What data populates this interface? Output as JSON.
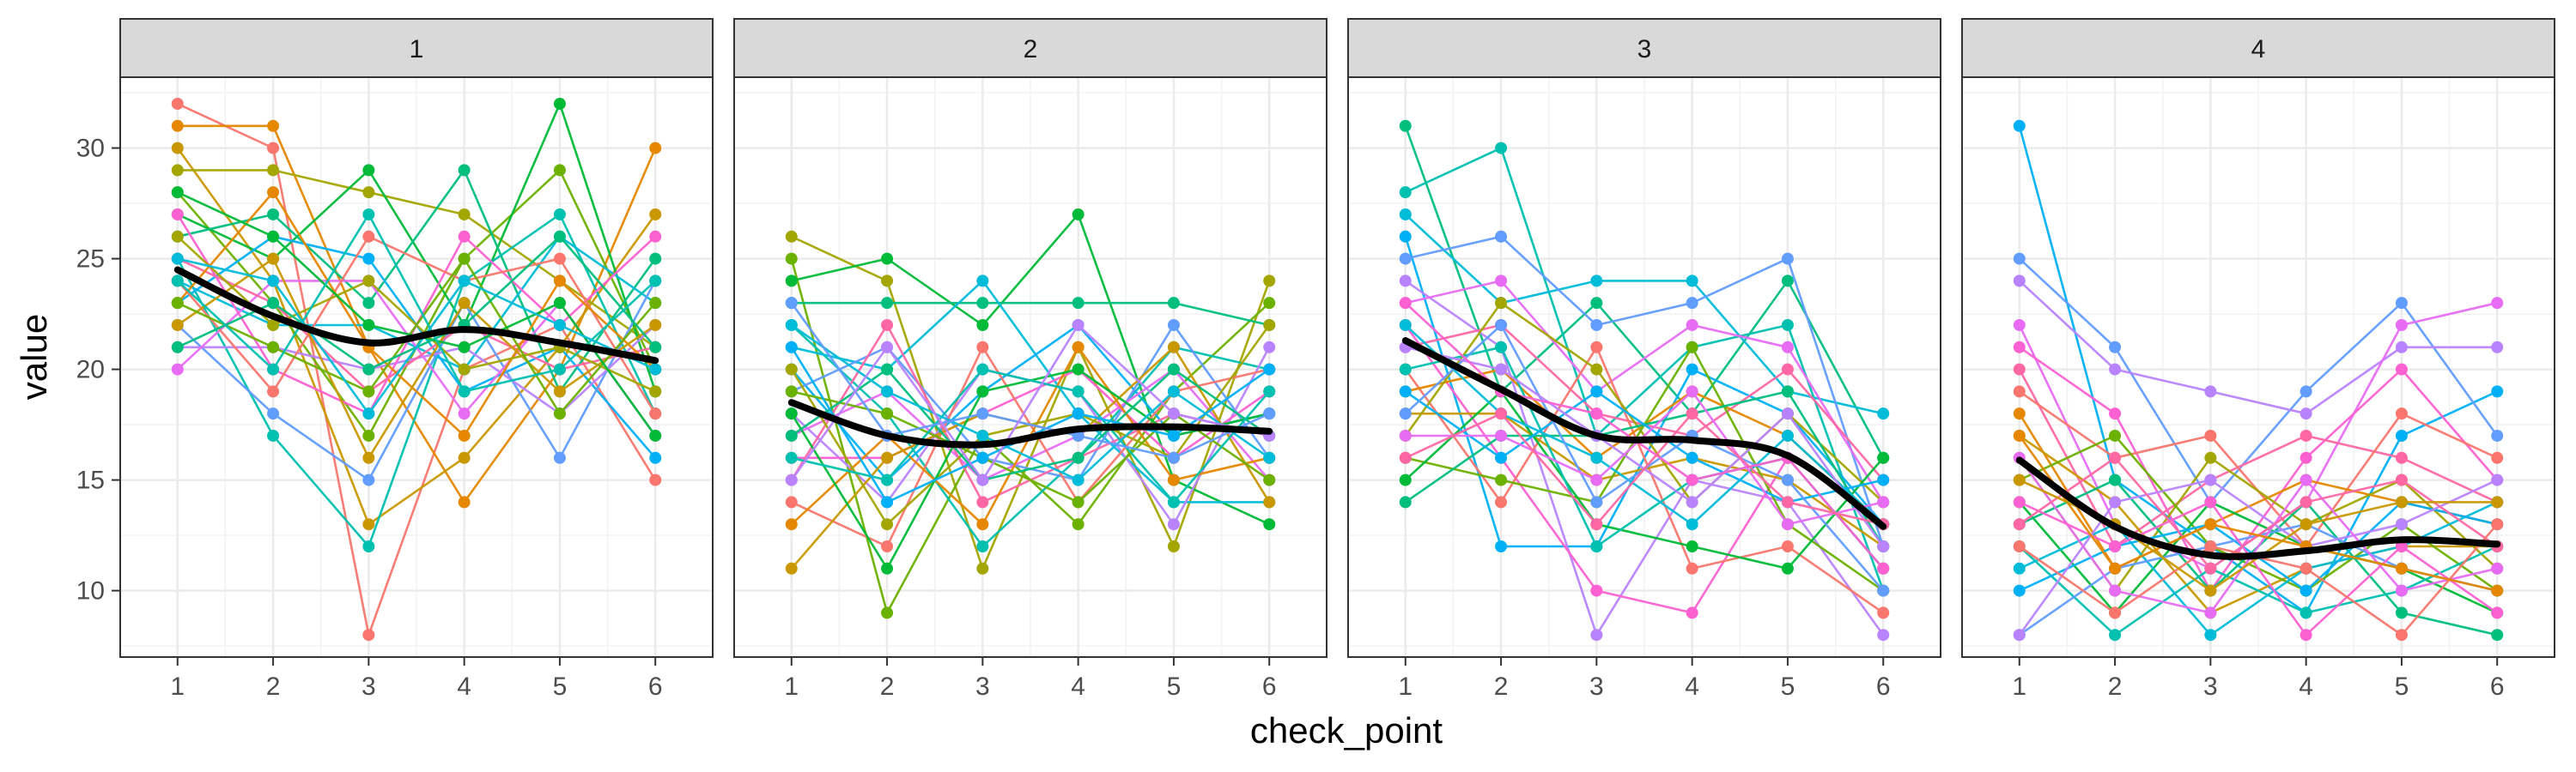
{
  "chart_data": {
    "type": "line",
    "xlabel": "check_point",
    "ylabel": "value",
    "x": [
      1,
      2,
      3,
      4,
      5,
      6
    ],
    "x_ticks": [
      "1",
      "2",
      "3",
      "4",
      "5",
      "6"
    ],
    "y_ticks": [
      10,
      15,
      20,
      25,
      30
    ],
    "y_tick_labels": [
      "10",
      "15",
      "20",
      "25",
      "30"
    ],
    "xlim": [
      0.4,
      6.6
    ],
    "ylim": [
      7,
      33.2
    ],
    "grid": true,
    "legend": "none",
    "smooth_color": "#000000",
    "palette": [
      "#F8766D",
      "#E58700",
      "#C99800",
      "#A3A500",
      "#6BB100",
      "#00BA38",
      "#00BF7D",
      "#00C0AF",
      "#00BCD8",
      "#00B0F6",
      "#619CFF",
      "#B983FF",
      "#E76BF3",
      "#FD61D1",
      "#FF67A4"
    ],
    "panels": [
      {
        "label": "1",
        "smooth": [
          24.5,
          22.4,
          21.2,
          21.8,
          21.2,
          20.4
        ],
        "series": [
          [
            32,
            30,
            8,
            20,
            22,
            15
          ],
          [
            31,
            31,
            21,
            14,
            20,
            30
          ],
          [
            30,
            24,
            13,
            16,
            21,
            27
          ],
          [
            29,
            29,
            28,
            27,
            24,
            21
          ],
          [
            28,
            23,
            17,
            25,
            29,
            20
          ],
          [
            27,
            25,
            29,
            22,
            32,
            19
          ],
          [
            26,
            27,
            23,
            29,
            19,
            25
          ],
          [
            25,
            17,
            12,
            24,
            27,
            18
          ],
          [
            24,
            22,
            22,
            20,
            26,
            23
          ],
          [
            23,
            26,
            25,
            19,
            21,
            16
          ],
          [
            22,
            18,
            15,
            23,
            16,
            24
          ],
          [
            21,
            21,
            20,
            21,
            18,
            22
          ],
          [
            20,
            24,
            24,
            18,
            23,
            17
          ],
          [
            27,
            20,
            18,
            26,
            22,
            26
          ],
          [
            25,
            23,
            19,
            22,
            20,
            21
          ],
          [
            24,
            19,
            26,
            24,
            25,
            18
          ],
          [
            23,
            28,
            21,
            17,
            24,
            20
          ],
          [
            22,
            25,
            16,
            23,
            19,
            22
          ],
          [
            26,
            22,
            24,
            20,
            21,
            19
          ],
          [
            23,
            21,
            19,
            25,
            18,
            23
          ],
          [
            28,
            26,
            22,
            21,
            23,
            17
          ],
          [
            21,
            23,
            20,
            22,
            26,
            21
          ],
          [
            24,
            20,
            27,
            19,
            20,
            24
          ],
          [
            25,
            24,
            18,
            24,
            22,
            20
          ]
        ]
      },
      {
        "label": "2",
        "smooth": [
          18.5,
          17.0,
          16.6,
          17.3,
          17.4,
          17.2
        ],
        "series": [
          [
            26,
            24,
            11,
            21,
            12,
            24
          ],
          [
            25,
            9,
            17,
            13,
            19,
            23
          ],
          [
            24,
            25,
            22,
            27,
            15,
            13
          ],
          [
            23,
            23,
            23,
            23,
            23,
            22
          ],
          [
            22,
            18,
            12,
            16,
            21,
            20
          ],
          [
            21,
            20,
            24,
            18,
            14,
            14
          ],
          [
            20,
            15,
            19,
            22,
            17,
            18
          ],
          [
            19,
            21,
            16,
            15,
            22,
            16
          ],
          [
            18,
            14,
            20,
            19,
            13,
            21
          ],
          [
            17,
            19,
            15,
            17,
            20,
            15
          ],
          [
            16,
            16,
            18,
            20,
            16,
            19
          ],
          [
            15,
            22,
            14,
            16,
            18,
            17
          ],
          [
            14,
            12,
            21,
            14,
            19,
            20
          ],
          [
            13,
            17,
            13,
            21,
            15,
            16
          ],
          [
            11,
            16,
            18,
            17,
            21,
            14
          ],
          [
            20,
            13,
            17,
            18,
            16,
            22
          ],
          [
            19,
            18,
            16,
            14,
            18,
            15
          ],
          [
            18,
            11,
            19,
            20,
            17,
            18
          ],
          [
            17,
            20,
            15,
            16,
            20,
            17
          ],
          [
            16,
            15,
            20,
            19,
            14,
            19
          ],
          [
            22,
            19,
            17,
            15,
            19,
            16
          ],
          [
            21,
            14,
            16,
            18,
            17,
            20
          ],
          [
            23,
            17,
            18,
            17,
            16,
            18
          ],
          [
            15,
            21,
            15,
            22,
            18,
            17
          ]
        ]
      },
      {
        "label": "3",
        "smooth": [
          21.3,
          19.1,
          17.0,
          16.8,
          16.1,
          12.9
        ],
        "series": [
          [
            31,
            19,
            23,
            18,
            24,
            16
          ],
          [
            28,
            30,
            17,
            21,
            22,
            10
          ],
          [
            27,
            23,
            24,
            24,
            19,
            18
          ],
          [
            26,
            12,
            12,
            20,
            18,
            13
          ],
          [
            25,
            26,
            22,
            23,
            25,
            12
          ],
          [
            24,
            21,
            8,
            15,
            14,
            8
          ],
          [
            23,
            24,
            19,
            22,
            21,
            14
          ],
          [
            22,
            16,
            10,
            9,
            16,
            11
          ],
          [
            21,
            22,
            18,
            17,
            20,
            15
          ],
          [
            20,
            14,
            21,
            11,
            12,
            9
          ],
          [
            19,
            20,
            16,
            19,
            17,
            13
          ],
          [
            18,
            18,
            15,
            16,
            15,
            12
          ],
          [
            17,
            23,
            20,
            14,
            18,
            14
          ],
          [
            16,
            15,
            14,
            21,
            13,
            10
          ],
          [
            15,
            19,
            13,
            12,
            11,
            16
          ],
          [
            14,
            17,
            17,
            18,
            19,
            12
          ],
          [
            20,
            21,
            12,
            15,
            16,
            11
          ],
          [
            22,
            18,
            16,
            13,
            17,
            13
          ],
          [
            19,
            16,
            19,
            16,
            14,
            15
          ],
          [
            18,
            22,
            14,
            17,
            15,
            10
          ],
          [
            21,
            20,
            17,
            14,
            18,
            12
          ],
          [
            17,
            17,
            15,
            19,
            13,
            14
          ],
          [
            23,
            19,
            18,
            15,
            16,
            11
          ],
          [
            16,
            18,
            13,
            18,
            14,
            13
          ]
        ]
      },
      {
        "label": "4",
        "smooth": [
          15.9,
          12.9,
          11.6,
          11.8,
          12.3,
          12.1
        ],
        "series": [
          [
            31,
            15,
            12,
            9,
            17,
            19
          ],
          [
            25,
            21,
            14,
            19,
            23,
            17
          ],
          [
            24,
            20,
            19,
            18,
            21,
            21
          ],
          [
            22,
            13,
            11,
            14,
            22,
            23
          ],
          [
            21,
            18,
            10,
            16,
            20,
            15
          ],
          [
            20,
            12,
            15,
            17,
            16,
            14
          ],
          [
            19,
            16,
            17,
            12,
            18,
            16
          ],
          [
            18,
            11,
            13,
            15,
            14,
            13
          ],
          [
            17,
            14,
            9,
            11,
            12,
            12
          ],
          [
            16,
            10,
            16,
            13,
            15,
            11
          ],
          [
            15,
            17,
            12,
            10,
            13,
            10
          ],
          [
            14,
            9,
            14,
            12,
            11,
            9
          ],
          [
            13,
            15,
            10,
            14,
            9,
            8
          ],
          [
            12,
            8,
            11,
            9,
            10,
            12
          ],
          [
            11,
            13,
            8,
            11,
            12,
            14
          ],
          [
            10,
            12,
            13,
            10,
            14,
            13
          ],
          [
            8,
            11,
            12,
            13,
            11,
            10
          ],
          [
            8,
            14,
            15,
            12,
            13,
            15
          ],
          [
            16,
            10,
            9,
            15,
            10,
            11
          ],
          [
            14,
            12,
            14,
            8,
            12,
            9
          ],
          [
            13,
            16,
            11,
            14,
            15,
            12
          ],
          [
            12,
            9,
            12,
            11,
            8,
            13
          ],
          [
            17,
            11,
            13,
            12,
            11,
            10
          ],
          [
            15,
            13,
            10,
            13,
            14,
            14
          ]
        ]
      }
    ]
  }
}
